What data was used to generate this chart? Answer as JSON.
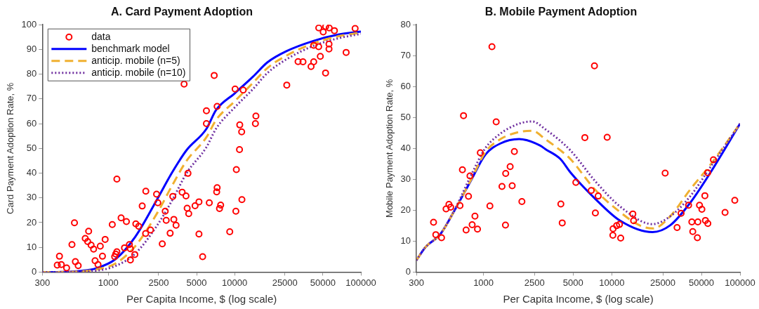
{
  "chart_data": [
    {
      "type": "scatter",
      "title": "A. Card Payment Adoption",
      "xlabel": "Per Capita Income, $ (log scale)",
      "ylabel": "Card Payment Adoption Rate, %",
      "log": "x",
      "grid": false,
      "legend": "top left",
      "xlim": [
        300,
        100000
      ],
      "xticks": [
        300,
        1000,
        2500,
        5000,
        10000,
        25000,
        50000,
        100000
      ],
      "ylim": [
        0,
        100
      ],
      "yticks": [
        0,
        10,
        20,
        30,
        40,
        50,
        60,
        70,
        80,
        90,
        100
      ],
      "series": [
        {
          "name": "data",
          "type": "scatter",
          "marker": "circle",
          "color": "#ff0000",
          "x": [
            394,
            410,
            424,
            467,
            515,
            539,
            548,
            577,
            656,
            698,
            686,
            730,
            764,
            785,
            828,
            863,
            898,
            943,
            1074,
            1122,
            1143,
            1168,
            1168,
            1262,
            1342,
            1390,
            1467,
            1494,
            1494,
            1620,
            1650,
            1740,
            1854,
            1973,
            1980,
            2158,
            2410,
            2466,
            2673,
            2821,
            2872,
            3086,
            3240,
            3300,
            3437,
            3840,
            3980,
            4120,
            4210,
            4270,
            4330,
            4860,
            5220,
            5220,
            5580,
            5980,
            5980,
            6300,
            6890,
            7270,
            7270,
            7210,
            7750,
            7590,
            9150,
            10090,
            10230,
            10320,
            10980,
            10930,
            11370,
            11420,
            11690,
            14740,
            14610,
            25880,
            31800,
            34780,
            42300,
            40300,
            42300,
            46300,
            46400,
            47700,
            50300,
            52600,
            52500,
            56100,
            55900,
            55900,
            61700,
            76400,
            90000
          ],
          "values": [
            2.8,
            6.4,
            3.0,
            1.7,
            11.1,
            19.9,
            4.2,
            2.6,
            13.6,
            16.5,
            12.3,
            10.9,
            9.3,
            4.6,
            3.0,
            10.5,
            6.4,
            13.2,
            19.2,
            6.2,
            7.3,
            8.2,
            37.6,
            21.9,
            9.8,
            20.4,
            11.1,
            4.9,
            9.4,
            7.1,
            19.5,
            18.5,
            26.7,
            15.6,
            32.7,
            17.0,
            31.5,
            28.0,
            11.4,
            24.6,
            20.9,
            15.7,
            30.6,
            21.3,
            18.9,
            32.3,
            76.0,
            30.8,
            25.8,
            39.9,
            23.6,
            26.8,
            15.4,
            28.4,
            6.2,
            60.0,
            65.2,
            28.0,
            79.5,
            67.0,
            34.1,
            32.4,
            27.1,
            25.7,
            16.3,
            74.0,
            24.6,
            41.4,
            59.5,
            49.5,
            56.7,
            29.3,
            73.6,
            63.1,
            60.0,
            75.6,
            85.1,
            85.0,
            85.0,
            83.1,
            91.7,
            91.1,
            98.7,
            87.2,
            97.1,
            99.3,
            80.5,
            98.7,
            92.2,
            90.2,
            97.6,
            88.8,
            98.5
          ]
        },
        {
          "name": "benchmark model",
          "type": "line",
          "marker": "none",
          "line_style": "solid",
          "color": "#0000ff",
          "x": [
            300,
            390,
            611,
            800,
            1143,
            1635,
            2445,
            3200,
            4165,
            5980,
            7130,
            9990,
            13980,
            18190,
            25700,
            42400,
            66100,
            100000
          ],
          "values": [
            0,
            0,
            0.5,
            1.5,
            5.3,
            14.3,
            29.6,
            40.3,
            49.3,
            57.9,
            65.5,
            72.2,
            79.0,
            84.8,
            89.3,
            93.5,
            96.0,
            97.2
          ]
        },
        {
          "name": "anticip. mobile (n=5)",
          "type": "line",
          "marker": "none",
          "line_style": "dashed",
          "color": "#f0b030",
          "x": [
            300,
            390,
            611,
            800,
            1143,
            1635,
            2445,
            3200,
            4165,
            5980,
            7130,
            9990,
            13980,
            18190,
            25700,
            42400,
            66100,
            100000
          ],
          "values": [
            0,
            0,
            0.3,
            1,
            3.5,
            10.5,
            24,
            35,
            45,
            54.5,
            61.5,
            69,
            76.5,
            82.5,
            87.5,
            92.5,
            95.3,
            96.8
          ]
        },
        {
          "name": "anticip. mobile (n=10)",
          "type": "line",
          "marker": "none",
          "line_style": "dotted",
          "color": "#7030a0",
          "x": [
            300,
            390,
            611,
            800,
            1143,
            1635,
            2445,
            3200,
            4165,
            5980,
            7130,
            9990,
            13980,
            18190,
            25700,
            42400,
            66100,
            100000
          ],
          "values": [
            0,
            0,
            0.2,
            0.5,
            2.5,
            7.5,
            19,
            29,
            40,
            50.5,
            58,
            66.5,
            74,
            80.5,
            86,
            91.5,
            94.5,
            96.3
          ]
        }
      ]
    },
    {
      "type": "scatter",
      "title": "B. Mobile Payment Adoption",
      "xlabel": "Per Capita Income, $ (log scale)",
      "ylabel": "Mobile Payment Adoption Rate, %",
      "log": "x",
      "grid": false,
      "xlim": [
        300,
        100000
      ],
      "xticks": [
        300,
        1000,
        2500,
        5000,
        10000,
        25000,
        50000,
        100000
      ],
      "ylim": [
        0,
        80
      ],
      "yticks": [
        0,
        10,
        20,
        30,
        40,
        50,
        60,
        70,
        80
      ],
      "series": [
        {
          "type": "scatter",
          "marker": "circle",
          "color": "#ff0000",
          "x": [
            408,
            425,
            471,
            511,
            538,
            555,
            656,
            685,
            699,
            732,
            764,
            785,
            816,
            858,
            898,
            945,
            1122,
            1164,
            1256,
            1394,
            1484,
            1490,
            1614,
            1674,
            1741,
            1993,
            4010,
            4110,
            5250,
            6170,
            6920,
            7330,
            7840,
            7450,
            9210,
            10240,
            10200,
            10920,
            11480,
            11740,
            14600,
            14800,
            26070,
            32300,
            34700,
            39700,
            42100,
            42800,
            46900,
            46500,
            48300,
            50400,
            53200,
            53700,
            56100,
            55900,
            62000,
            76400,
            91000
          ],
          "values": [
            16.1,
            12.1,
            11.1,
            20.4,
            21.9,
            21.0,
            21.5,
            33.1,
            50.6,
            13.6,
            24.5,
            31.1,
            15.3,
            18.1,
            13.9,
            38.6,
            21.4,
            72.9,
            48.6,
            27.7,
            15.2,
            31.9,
            34.1,
            27.9,
            39.0,
            22.8,
            22.0,
            15.9,
            29.0,
            43.5,
            26.4,
            66.7,
            24.6,
            19.1,
            43.6,
            14.0,
            11.9,
            15.0,
            15.4,
            11.0,
            18.8,
            16.6,
            32.0,
            14.4,
            19.0,
            21.6,
            16.2,
            13.1,
            16.2,
            11.1,
            21.6,
            20.3,
            24.7,
            16.7,
            15.7,
            32.1,
            36.3,
            19.3,
            23.2
          ]
        },
        {
          "type": "line",
          "marker": "none",
          "line_style": "solid",
          "color": "#0000ff",
          "x": [
            300,
            352,
            462,
            605,
            794,
            1036,
            1357,
            1896,
            2774,
            3030,
            3970,
            4750,
            7430,
            11620,
            20800,
            28500,
            40700,
            58200,
            100000
          ],
          "values": [
            3.8,
            8.0,
            12.3,
            20.5,
            29.4,
            38.0,
            41.6,
            43.0,
            40.9,
            39.8,
            36.6,
            32.3,
            23.7,
            16.6,
            12.9,
            15.1,
            22.3,
            31.9,
            48.0
          ]
        },
        {
          "type": "line",
          "marker": "none",
          "line_style": "dashed",
          "color": "#f0b030",
          "x": [
            300,
            352,
            462,
            605,
            794,
            1036,
            1357,
            1896,
            2400,
            3030,
            3970,
            4750,
            7430,
            11620,
            16500,
            21000,
            28500,
            40700,
            58200,
            100000
          ],
          "values": [
            3.8,
            8.0,
            12.3,
            20.5,
            29.6,
            38.8,
            43.0,
            45.3,
            45.7,
            43.0,
            39.4,
            36.6,
            26.6,
            19.4,
            15.1,
            14.1,
            18.0,
            26.6,
            34.5,
            48.0
          ]
        },
        {
          "type": "line",
          "marker": "none",
          "line_style": "dotted",
          "color": "#7030a0",
          "x": [
            300,
            352,
            462,
            605,
            794,
            1036,
            1357,
            1896,
            2400,
            3030,
            4750,
            7430,
            11620,
            20800,
            28500,
            40700,
            58200,
            100000
          ],
          "values": [
            3.8,
            8.0,
            12.3,
            20.7,
            31.0,
            40.1,
            44.8,
            48.0,
            48.7,
            46.2,
            39.4,
            29.4,
            21.2,
            15.5,
            18.0,
            24.4,
            33.7,
            48.0
          ]
        }
      ]
    }
  ]
}
